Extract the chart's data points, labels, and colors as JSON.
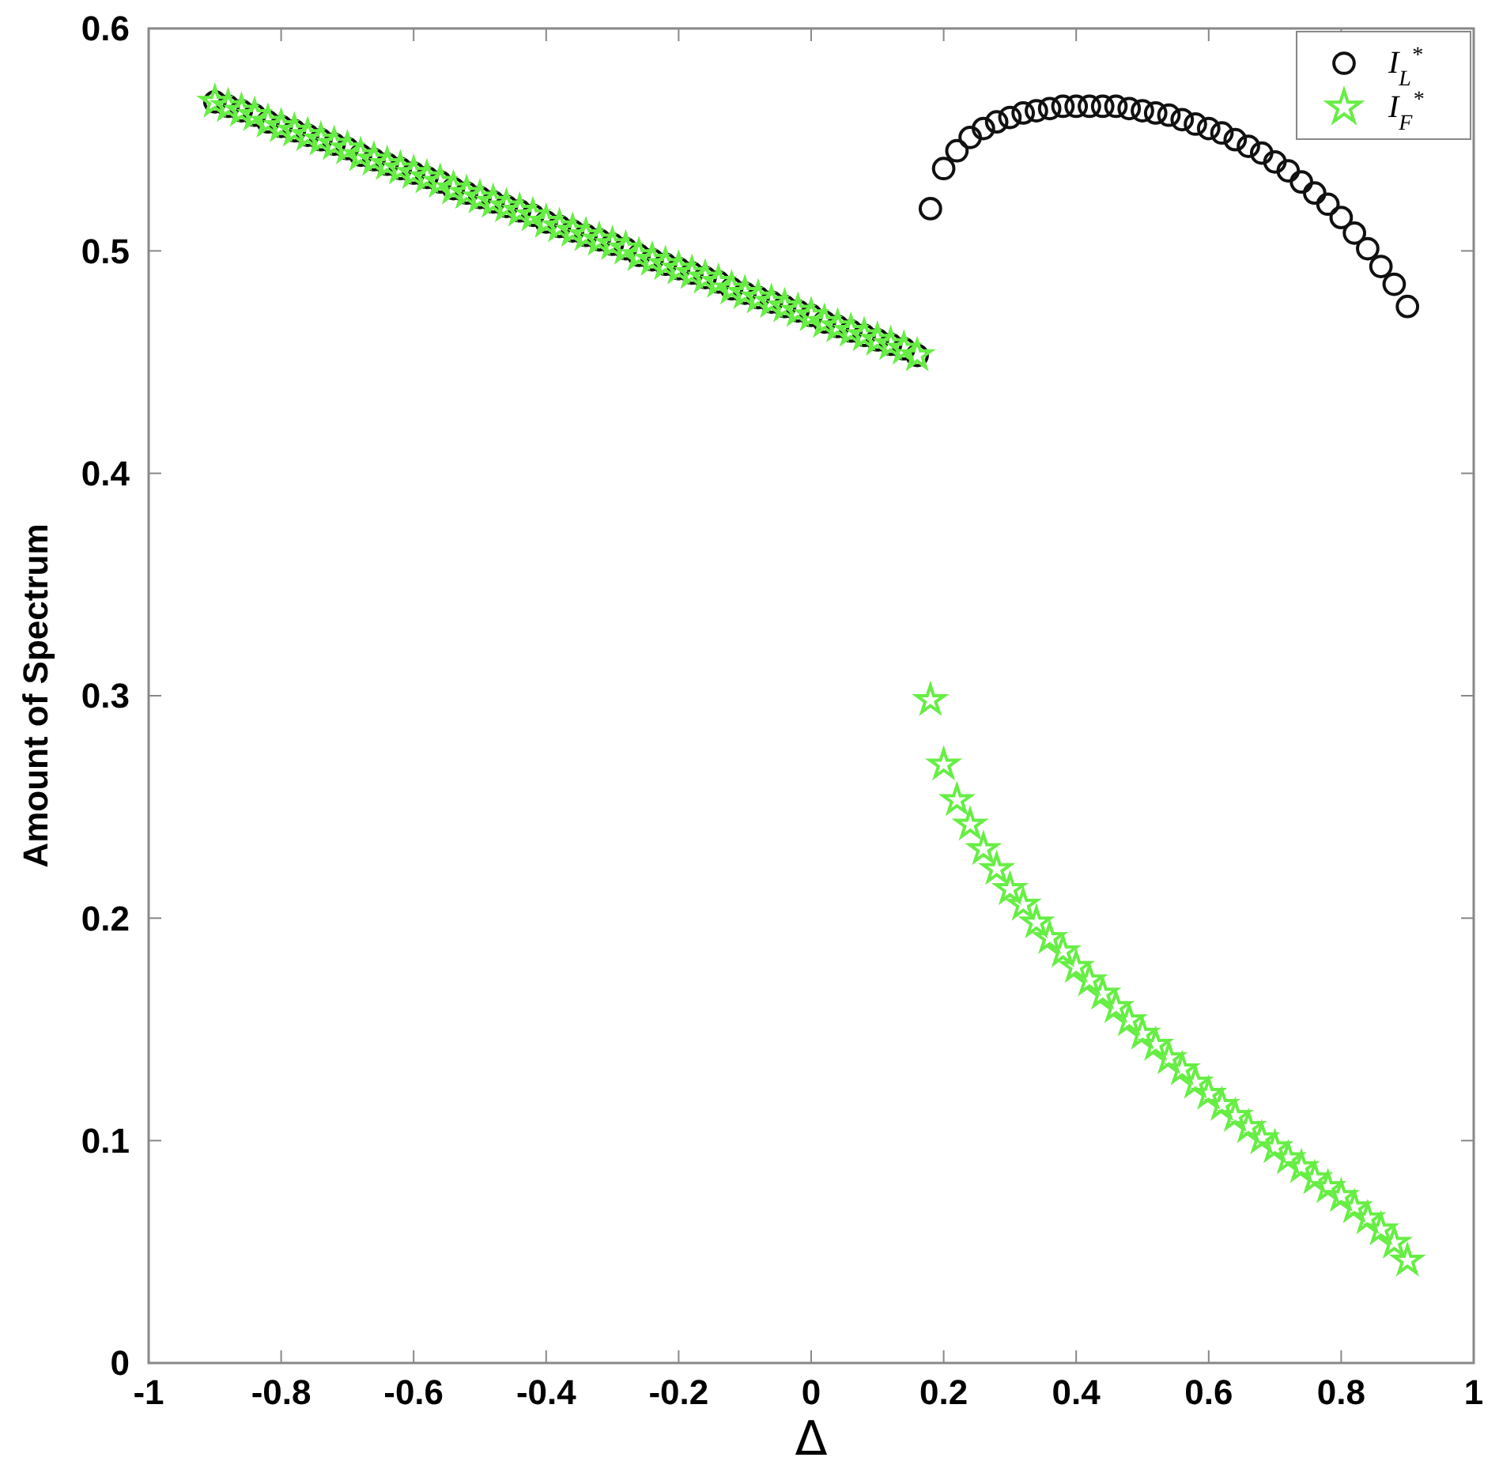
{
  "chart_data": {
    "type": "scatter",
    "xlabel": "Δ",
    "ylabel": "Amount of Spectrum",
    "x": [
      -0.9,
      -0.88,
      -0.86,
      -0.84,
      -0.82,
      -0.8,
      -0.78,
      -0.76,
      -0.74,
      -0.72,
      -0.7,
      -0.68,
      -0.66,
      -0.64,
      -0.62,
      -0.6,
      -0.58,
      -0.56,
      -0.54,
      -0.52,
      -0.5,
      -0.48,
      -0.46,
      -0.44,
      -0.42,
      -0.4,
      -0.38,
      -0.36,
      -0.34,
      -0.32,
      -0.3,
      -0.28,
      -0.26,
      -0.24,
      -0.22,
      -0.2,
      -0.18,
      -0.16,
      -0.14,
      -0.12,
      -0.1,
      -0.08,
      -0.06,
      -0.04,
      -0.02,
      0,
      0.02,
      0.04,
      0.06,
      0.08,
      0.1,
      0.12,
      0.14,
      0.16,
      0.18,
      0.2,
      0.22,
      0.24,
      0.26,
      0.28,
      0.3,
      0.32,
      0.34,
      0.36,
      0.38,
      0.4,
      0.42,
      0.44,
      0.46,
      0.48,
      0.5,
      0.52,
      0.54,
      0.56,
      0.58,
      0.6,
      0.62,
      0.64,
      0.66,
      0.68,
      0.7,
      0.72,
      0.74,
      0.76,
      0.78,
      0.8,
      0.82,
      0.84,
      0.86,
      0.88,
      0.9
    ],
    "series": [
      {
        "name": "I$_{L}$$^{*}$",
        "color": "#111111",
        "marker": "circle",
        "values": [
          0.567,
          0.565,
          0.563,
          0.561,
          0.558,
          0.556,
          0.554,
          0.552,
          0.55,
          0.548,
          0.546,
          0.543,
          0.541,
          0.539,
          0.537,
          0.535,
          0.533,
          0.531,
          0.528,
          0.526,
          0.524,
          0.522,
          0.52,
          0.518,
          0.516,
          0.513,
          0.511,
          0.509,
          0.507,
          0.505,
          0.503,
          0.501,
          0.498,
          0.496,
          0.494,
          0.492,
          0.49,
          0.488,
          0.486,
          0.483,
          0.481,
          0.479,
          0.477,
          0.475,
          0.473,
          0.471,
          0.468,
          0.466,
          0.464,
          0.462,
          0.46,
          0.458,
          0.456,
          0.453,
          0.519,
          0.537,
          0.545,
          0.551,
          0.555,
          0.558,
          0.56,
          0.562,
          0.563,
          0.564,
          0.565,
          0.565,
          0.565,
          0.565,
          0.565,
          0.564,
          0.563,
          0.562,
          0.561,
          0.559,
          0.557,
          0.555,
          0.553,
          0.55,
          0.547,
          0.544,
          0.54,
          0.536,
          0.531,
          0.526,
          0.521,
          0.515,
          0.508,
          0.501,
          0.493,
          0.485,
          0.475
        ]
      },
      {
        "name": "I$_{F}$$^{*}$",
        "color": "#66ee44",
        "marker": "star",
        "values": [
          0.567,
          0.565,
          0.563,
          0.561,
          0.558,
          0.556,
          0.554,
          0.552,
          0.55,
          0.548,
          0.546,
          0.543,
          0.541,
          0.539,
          0.537,
          0.535,
          0.533,
          0.531,
          0.528,
          0.526,
          0.524,
          0.522,
          0.52,
          0.518,
          0.516,
          0.513,
          0.511,
          0.509,
          0.507,
          0.505,
          0.503,
          0.501,
          0.498,
          0.496,
          0.494,
          0.492,
          0.49,
          0.488,
          0.486,
          0.483,
          0.481,
          0.479,
          0.477,
          0.475,
          0.473,
          0.471,
          0.468,
          0.466,
          0.464,
          0.462,
          0.46,
          0.458,
          0.456,
          0.453,
          0.298,
          0.269,
          0.253,
          0.242,
          0.231,
          0.222,
          0.213,
          0.206,
          0.198,
          0.191,
          0.185,
          0.178,
          0.172,
          0.166,
          0.16,
          0.154,
          0.148,
          0.143,
          0.137,
          0.132,
          0.126,
          0.121,
          0.116,
          0.111,
          0.106,
          0.101,
          0.097,
          0.092,
          0.088,
          0.083,
          0.079,
          0.075,
          0.07,
          0.065,
          0.06,
          0.054,
          0.046
        ]
      }
    ],
    "xlim": [
      -1,
      1
    ],
    "xticks": [
      -1,
      -0.8,
      -0.6,
      -0.4,
      -0.2,
      0,
      0.2,
      0.4,
      0.6,
      0.8,
      1
    ],
    "ylim": [
      0,
      0.6
    ],
    "yticks": [
      0,
      0.1,
      0.2,
      0.3,
      0.4,
      0.5,
      0.6
    ],
    "grid": false,
    "legend": "top right"
  }
}
